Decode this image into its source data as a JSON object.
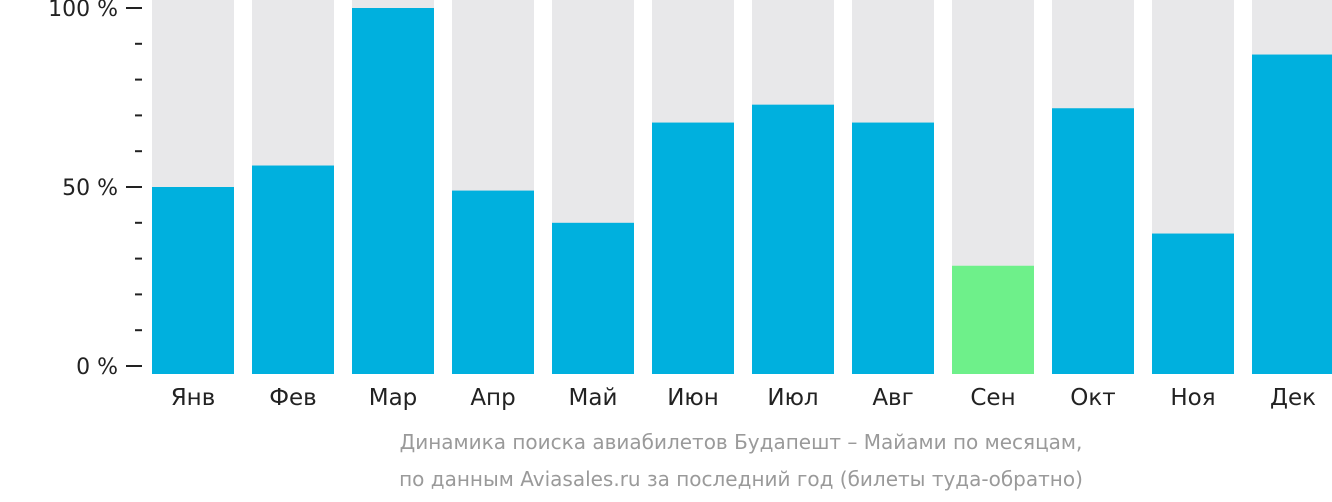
{
  "chart_data": {
    "type": "bar",
    "stacked_background": true,
    "categories": [
      "Янв",
      "Фев",
      "Мар",
      "Апр",
      "Май",
      "Июн",
      "Июл",
      "Авг",
      "Сен",
      "Окт",
      "Ноя",
      "Дек"
    ],
    "values": [
      50,
      56,
      100,
      49,
      40,
      68,
      73,
      68,
      28,
      72,
      37,
      87
    ],
    "highlight_index": 8,
    "ylim": [
      0,
      100
    ],
    "yticks": [
      "0 %",
      "50 %",
      "100 %"
    ],
    "ytick_values": [
      0,
      50,
      100
    ],
    "minor_ticks_step": 10,
    "grid": false,
    "colors": {
      "bar": "#00b0de",
      "highlight": "#6ef08a",
      "background": "#e8e8ea",
      "axis": "#222222"
    }
  },
  "caption": {
    "line1": "Динамика поиска авиабилетов Будапешт – Майами по месяцам,",
    "line2": "по данным Aviasales.ru за последний год (билеты туда-обратно)"
  }
}
